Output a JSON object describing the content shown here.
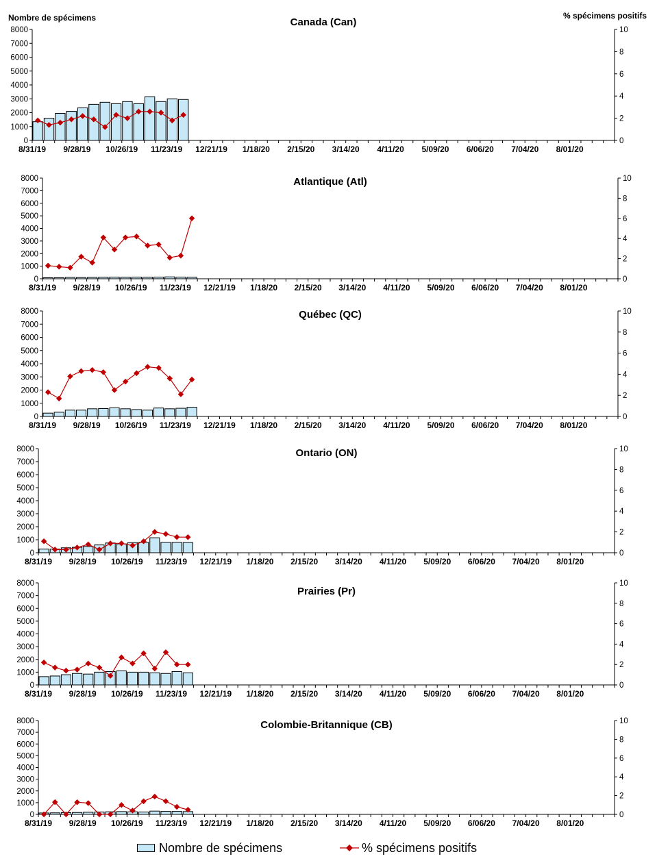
{
  "left_axis_title": "Nombre de spécimens",
  "right_axis_title": "% spécimens positifs",
  "legend": {
    "bar_label": "Nombre de spécimens",
    "line_label": "% spécimens positifs"
  },
  "colors": {
    "bar_fill": "#c6e8f7",
    "bar_stroke": "#000000",
    "line": "#c00000"
  },
  "chart_data": [
    {
      "type": "bar+line",
      "title": "Canada (Can)",
      "x_tick_labels": [
        "8/31/19",
        "9/28/19",
        "10/26/19",
        "11/23/19",
        "12/21/19",
        "1/18/20",
        "2/15/20",
        "3/14/20",
        "4/11/20",
        "5/09/20",
        "6/06/20",
        "7/04/20",
        "8/01/20"
      ],
      "y_left_lim": [
        0,
        8000
      ],
      "y_left_ticks": [
        0,
        1000,
        2000,
        3000,
        4000,
        5000,
        6000,
        7000,
        8000
      ],
      "y_right_lim": [
        0,
        10
      ],
      "y_right_ticks": [
        0,
        2,
        4,
        6,
        8,
        10
      ],
      "series": [
        {
          "name": "Nombre de spécimens",
          "kind": "bar",
          "axis": "left",
          "values": [
            1350,
            1600,
            1950,
            2100,
            2350,
            2600,
            2750,
            2650,
            2800,
            2650,
            3150,
            2800,
            3000,
            2950
          ]
        },
        {
          "name": "% spécimens positifs",
          "kind": "line",
          "axis": "right",
          "values": [
            1.8,
            1.4,
            1.6,
            1.9,
            2.2,
            1.9,
            1.2,
            2.3,
            2.0,
            2.6,
            2.6,
            2.5,
            1.8,
            2.3
          ]
        }
      ]
    },
    {
      "type": "bar+line",
      "title": "Atlantique (Atl)",
      "x_tick_labels": [
        "8/31/19",
        "9/28/19",
        "10/26/19",
        "11/23/19",
        "12/21/19",
        "1/18/20",
        "2/15/20",
        "3/14/20",
        "4/11/20",
        "5/09/20",
        "6/06/20",
        "7/04/20",
        "8/01/20"
      ],
      "y_left_lim": [
        0,
        8000
      ],
      "y_left_ticks": [
        0,
        1000,
        2000,
        3000,
        4000,
        5000,
        6000,
        7000,
        8000
      ],
      "y_right_lim": [
        0,
        10
      ],
      "y_right_ticks": [
        0,
        2,
        4,
        6,
        8,
        10
      ],
      "series": [
        {
          "name": "Nombre de spécimens",
          "kind": "bar",
          "axis": "left",
          "values": [
            80,
            90,
            110,
            100,
            110,
            120,
            130,
            120,
            130,
            120,
            130,
            150,
            130,
            120
          ]
        },
        {
          "name": "% spécimens positifs",
          "kind": "line",
          "axis": "right",
          "values": [
            1.3,
            1.2,
            1.1,
            2.2,
            1.6,
            4.1,
            2.9,
            4.1,
            4.2,
            3.3,
            3.4,
            2.1,
            2.3,
            6.0
          ]
        }
      ]
    },
    {
      "type": "bar+line",
      "title": "Québec (QC)",
      "x_tick_labels": [
        "8/31/19",
        "9/28/19",
        "10/26/19",
        "11/23/19",
        "12/21/19",
        "1/18/20",
        "2/15/20",
        "3/14/20",
        "4/11/20",
        "5/09/20",
        "6/06/20",
        "7/04/20",
        "8/01/20"
      ],
      "y_left_lim": [
        0,
        8000
      ],
      "y_left_ticks": [
        0,
        1000,
        2000,
        3000,
        4000,
        5000,
        6000,
        7000,
        8000
      ],
      "y_right_lim": [
        0,
        10
      ],
      "y_right_ticks": [
        0,
        2,
        4,
        6,
        8,
        10
      ],
      "series": [
        {
          "name": "Nombre de spécimens",
          "kind": "bar",
          "axis": "left",
          "values": [
            250,
            320,
            480,
            480,
            580,
            600,
            650,
            580,
            520,
            480,
            640,
            580,
            620,
            700
          ]
        },
        {
          "name": "% spécimens positifs",
          "kind": "line",
          "axis": "right",
          "values": [
            2.3,
            1.7,
            3.8,
            4.3,
            4.4,
            4.2,
            2.5,
            3.3,
            4.1,
            4.7,
            4.6,
            3.6,
            2.1,
            3.5
          ]
        }
      ]
    },
    {
      "type": "bar+line",
      "title": "Ontario (ON)",
      "x_tick_labels": [
        "8/31/19",
        "9/28/19",
        "10/26/19",
        "11/23/19",
        "12/21/19",
        "1/18/20",
        "2/15/20",
        "3/14/20",
        "4/11/20",
        "5/09/20",
        "6/06/20",
        "7/04/20",
        "8/01/20"
      ],
      "y_left_lim": [
        0,
        8000
      ],
      "y_left_ticks": [
        0,
        1000,
        2000,
        3000,
        4000,
        5000,
        6000,
        7000,
        8000
      ],
      "y_right_lim": [
        0,
        10
      ],
      "y_right_ticks": [
        0,
        2,
        4,
        6,
        8,
        10
      ],
      "series": [
        {
          "name": "Nombre de spécimens",
          "kind": "bar",
          "axis": "left",
          "values": [
            280,
            280,
            380,
            420,
            480,
            600,
            750,
            680,
            780,
            800,
            1150,
            800,
            800,
            780
          ]
        },
        {
          "name": "% spécimens positifs",
          "kind": "line",
          "axis": "right",
          "values": [
            1.1,
            0.3,
            0.3,
            0.5,
            0.8,
            0.3,
            0.9,
            0.9,
            0.7,
            1.1,
            2.0,
            1.8,
            1.5,
            1.5
          ]
        }
      ]
    },
    {
      "type": "bar+line",
      "title": "Prairies (Pr)",
      "x_tick_labels": [
        "8/31/19",
        "9/28/19",
        "10/26/19",
        "11/23/19",
        "12/21/19",
        "1/18/20",
        "2/15/20",
        "3/14/20",
        "4/11/20",
        "5/09/20",
        "6/06/20",
        "7/04/20",
        "8/01/20"
      ],
      "y_left_lim": [
        0,
        8000
      ],
      "y_left_ticks": [
        0,
        1000,
        2000,
        3000,
        4000,
        5000,
        6000,
        7000,
        8000
      ],
      "y_right_lim": [
        0,
        10
      ],
      "y_right_ticks": [
        0,
        2,
        4,
        6,
        8,
        10
      ],
      "series": [
        {
          "name": "Nombre de spécimens",
          "kind": "bar",
          "axis": "left",
          "values": [
            650,
            700,
            800,
            900,
            850,
            1000,
            1050,
            1100,
            1000,
            1000,
            950,
            900,
            1050,
            950
          ]
        },
        {
          "name": "% spécimens positifs",
          "kind": "line",
          "axis": "right",
          "values": [
            2.2,
            1.7,
            1.4,
            1.5,
            2.1,
            1.7,
            0.9,
            2.7,
            2.1,
            3.1,
            1.6,
            3.2,
            2.0,
            2.0
          ]
        }
      ]
    },
    {
      "type": "bar+line",
      "title": "Colombie-Britannique (CB)",
      "x_tick_labels": [
        "8/31/19",
        "9/28/19",
        "10/26/19",
        "11/23/19",
        "12/21/19",
        "1/18/20",
        "2/15/20",
        "3/14/20",
        "4/11/20",
        "5/09/20",
        "6/06/20",
        "7/04/20",
        "8/01/20"
      ],
      "y_left_lim": [
        0,
        8000
      ],
      "y_left_ticks": [
        0,
        1000,
        2000,
        3000,
        4000,
        5000,
        6000,
        7000,
        8000
      ],
      "y_right_lim": [
        0,
        10
      ],
      "y_right_ticks": [
        0,
        2,
        4,
        6,
        8,
        10
      ],
      "series": [
        {
          "name": "Nombre de spécimens",
          "kind": "bar",
          "axis": "left",
          "values": [
            120,
            130,
            150,
            160,
            180,
            200,
            220,
            240,
            220,
            200,
            280,
            260,
            260,
            240
          ]
        },
        {
          "name": "% spécimens positifs",
          "kind": "line",
          "axis": "right",
          "values": [
            0.0,
            1.3,
            0.0,
            1.3,
            1.2,
            0.0,
            0.0,
            1.0,
            0.4,
            1.4,
            1.9,
            1.4,
            0.8,
            0.5
          ]
        }
      ]
    }
  ]
}
